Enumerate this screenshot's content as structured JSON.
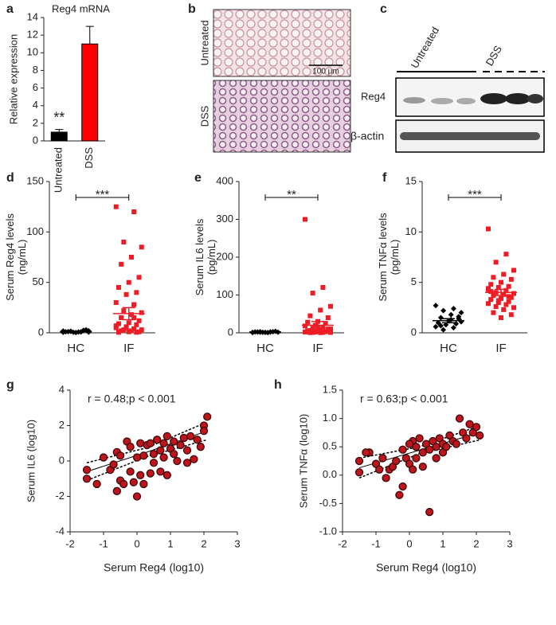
{
  "chart_data": [
    {
      "type": "bar",
      "panel": "a",
      "title": "Reg4 mRNA",
      "ylabel": [
        "Relative expression"
      ],
      "categories": [
        "Untreated",
        "DSS"
      ],
      "values": [
        1,
        11
      ],
      "errors": [
        0.3,
        2
      ],
      "colors": [
        "#000000",
        "#ff0000"
      ],
      "annotation": "**",
      "ylim": [
        0,
        14
      ],
      "yticks": [
        0,
        2,
        4,
        6,
        8,
        10,
        12,
        14
      ]
    },
    {
      "type": "dot",
      "panel": "d",
      "ylabel": [
        "Serum Reg4 levels",
        "(ng/mL)"
      ],
      "categories": [
        "HC",
        "IF"
      ],
      "annotation": "***",
      "ylim": [
        0,
        150
      ],
      "yticks": [
        0,
        50,
        100,
        150
      ],
      "groups": [
        {
          "color": "#000000",
          "marker": "diamond",
          "values": [
            0.5,
            1,
            1.5,
            2,
            0.8,
            1.2,
            3,
            0.3,
            1,
            2.5,
            0.6,
            1.8,
            0.9,
            1.4,
            0.7
          ],
          "mean": 1.2,
          "sem": 0.2
        },
        {
          "color": "#ee1c24",
          "marker": "square",
          "values": [
            125,
            120,
            90,
            85,
            75,
            68,
            55,
            50,
            45,
            40,
            38,
            30,
            28,
            22,
            20,
            18,
            15,
            12,
            10,
            9,
            8,
            6,
            5,
            4,
            3,
            3,
            2,
            2,
            1,
            1,
            0.5,
            0.5,
            5,
            7,
            15
          ],
          "mean": 19,
          "sem": 6
        }
      ]
    },
    {
      "type": "dot",
      "panel": "e",
      "ylabel": [
        "Serum IL6 levels",
        "(pg/mL)"
      ],
      "categories": [
        "HC",
        "IF"
      ],
      "annotation": "**",
      "ylim": [
        0,
        400
      ],
      "yticks": [
        0,
        100,
        200,
        300,
        400
      ],
      "groups": [
        {
          "color": "#000000",
          "marker": "diamond",
          "values": [
            1,
            2,
            3,
            1.5,
            0.5,
            2,
            4,
            1,
            2.5,
            3,
            1.2,
            0.8,
            2,
            1.5
          ],
          "mean": 2,
          "sem": 0.3
        },
        {
          "color": "#ee1c24",
          "marker": "square",
          "values": [
            300,
            120,
            105,
            70,
            60,
            45,
            40,
            30,
            28,
            25,
            20,
            18,
            15,
            12,
            10,
            8,
            6,
            5,
            4,
            3,
            3,
            2,
            2,
            1,
            1,
            1,
            0.5,
            0.5,
            10,
            15,
            5
          ],
          "mean": 20,
          "sem": 10
        }
      ]
    },
    {
      "type": "dot",
      "panel": "f",
      "ylabel": [
        "Serum TNFα levels",
        "(pg/mL)"
      ],
      "categories": [
        "HC",
        "IF"
      ],
      "annotation": "***",
      "ylim": [
        0,
        15
      ],
      "yticks": [
        0,
        5,
        10,
        15
      ],
      "groups": [
        {
          "color": "#000000",
          "marker": "diamond",
          "values": [
            2.7,
            2.4,
            2.2,
            2.0,
            1.8,
            1.5,
            1.4,
            1.2,
            1.0,
            0.9,
            0.8,
            0.6,
            0.5,
            0.3,
            1.1,
            1.3,
            0.7,
            1.6
          ],
          "mean": 1.2,
          "sem": 0.2
        },
        {
          "color": "#ee1c24",
          "marker": "square",
          "values": [
            10.3,
            7.8,
            7.0,
            6.2,
            5.8,
            5.5,
            5.3,
            5.0,
            4.8,
            4.6,
            4.5,
            4.3,
            4.2,
            4.0,
            3.9,
            3.8,
            3.7,
            3.5,
            3.4,
            3.3,
            3.1,
            3.0,
            2.9,
            2.8,
            2.6,
            2.5,
            2.3,
            2.0,
            1.8,
            1.5,
            4.1,
            3.6,
            3.2,
            4.4
          ],
          "mean": 4.0,
          "sem": 0.3
        }
      ]
    },
    {
      "type": "scatter",
      "panel": "g",
      "xlabel": "Serum Reg4 (log10)",
      "ylabel": [
        "Serum IL6 (log10)"
      ],
      "annotation": "r = 0.48;p < 0.001",
      "xlim": [
        -2,
        3
      ],
      "xticks": [
        -2,
        -1,
        0,
        1,
        2,
        3
      ],
      "ylim": [
        -4,
        4
      ],
      "yticks": [
        -4,
        -2,
        0,
        2,
        4
      ],
      "color": "#c0141c",
      "x": [
        -1.5,
        -1.5,
        -1.2,
        -1.0,
        -0.8,
        -0.7,
        -0.6,
        -0.5,
        -0.5,
        -0.4,
        -0.3,
        -0.2,
        -0.2,
        -0.1,
        0,
        0,
        0.1,
        0.1,
        0.2,
        0.2,
        0.3,
        0.4,
        0.4,
        0.5,
        0.5,
        0.6,
        0.7,
        0.7,
        0.8,
        0.8,
        0.9,
        0.9,
        1.0,
        1.1,
        1.1,
        1.2,
        1.3,
        1.4,
        1.5,
        1.5,
        1.6,
        1.7,
        1.8,
        1.9,
        2.0,
        2.1,
        2.0,
        -0.6
      ],
      "y": [
        -0.5,
        -1.0,
        -1.3,
        0.2,
        -0.5,
        -0.2,
        0.5,
        0.3,
        -1.1,
        -1.3,
        1.1,
        0.8,
        -0.6,
        -1.2,
        -2.0,
        0.2,
        -0.8,
        1.0,
        0.3,
        -1.3,
        0.9,
        -0.7,
        1.0,
        0.4,
        -0.1,
        1.2,
        0.6,
        -0.6,
        1.0,
        0.2,
        1.4,
        -0.8,
        0.7,
        0.4,
        1.1,
        0.0,
        0.9,
        1.3,
        0.6,
        -0.1,
        1.4,
        0.1,
        1.2,
        0.8,
        2.0,
        2.5,
        1.7,
        -1.7
      ],
      "fit_x": [
        -1.5,
        0.3,
        2.1
      ],
      "fit": [
        -0.6,
        0.5,
        1.7
      ],
      "ci_upper": [
        -0.1,
        0.75,
        2.2
      ],
      "ci_lower": [
        -1.1,
        0.25,
        1.2
      ]
    },
    {
      "type": "scatter",
      "panel": "h",
      "xlabel": "Serum Reg4 (log10)",
      "ylabel": [
        "Serum TNFα (log10)"
      ],
      "annotation": "r = 0.63;p < 0.001",
      "xlim": [
        -2,
        3
      ],
      "xticks": [
        -2,
        -1,
        0,
        1,
        2,
        3
      ],
      "ylim": [
        -1,
        1.5
      ],
      "yticks": [
        {
          "value": -1,
          "label": "-1.0"
        },
        -0.5,
        {
          "value": 0,
          "label": "0.0"
        },
        0.5,
        {
          "value": 1,
          "label": "1.0"
        },
        1.5
      ],
      "color": "#c0141c",
      "x": [
        -1.5,
        -1.5,
        -1.2,
        -1.0,
        -0.9,
        -0.8,
        -0.7,
        -0.6,
        -0.5,
        -0.4,
        -0.3,
        -0.2,
        -0.2,
        -0.1,
        0,
        0.1,
        0.1,
        0.2,
        0.2,
        0.3,
        0.4,
        0.4,
        0.5,
        0.6,
        0.6,
        0.7,
        0.8,
        0.8,
        0.9,
        1.0,
        1.0,
        1.1,
        1.2,
        1.3,
        1.4,
        1.5,
        1.6,
        1.7,
        1.8,
        1.9,
        2.0,
        2.1,
        0,
        -1.3
      ],
      "y": [
        0.05,
        0.25,
        0.4,
        0.2,
        0.1,
        0.3,
        -0.05,
        0.1,
        0.15,
        0.25,
        -0.35,
        -0.2,
        0.45,
        0.3,
        0.2,
        0.1,
        0.6,
        0.5,
        0.3,
        0.65,
        0.4,
        0.15,
        0.55,
        -0.65,
        0.45,
        0.6,
        0.3,
        0.5,
        0.65,
        0.55,
        0.4,
        0.5,
        0.7,
        0.6,
        0.55,
        1.0,
        0.75,
        0.65,
        0.9,
        0.75,
        0.85,
        0.7,
        0.55,
        0.4
      ],
      "fit_x": [
        -1.5,
        0.3,
        2.1
      ],
      "fit": [
        0.13,
        0.44,
        0.75
      ],
      "ci_upper": [
        0.3,
        0.5,
        0.87
      ],
      "ci_lower": [
        -0.05,
        0.38,
        0.62
      ]
    }
  ],
  "images": [
    {
      "panel": "b",
      "labels": [
        "Untreated",
        "DSS"
      ],
      "scale_bar": "100 μm"
    },
    {
      "panel": "c",
      "lanes": [
        "Untreated",
        "DSS"
      ],
      "bands": [
        "Reg4",
        "β-actin"
      ]
    }
  ]
}
